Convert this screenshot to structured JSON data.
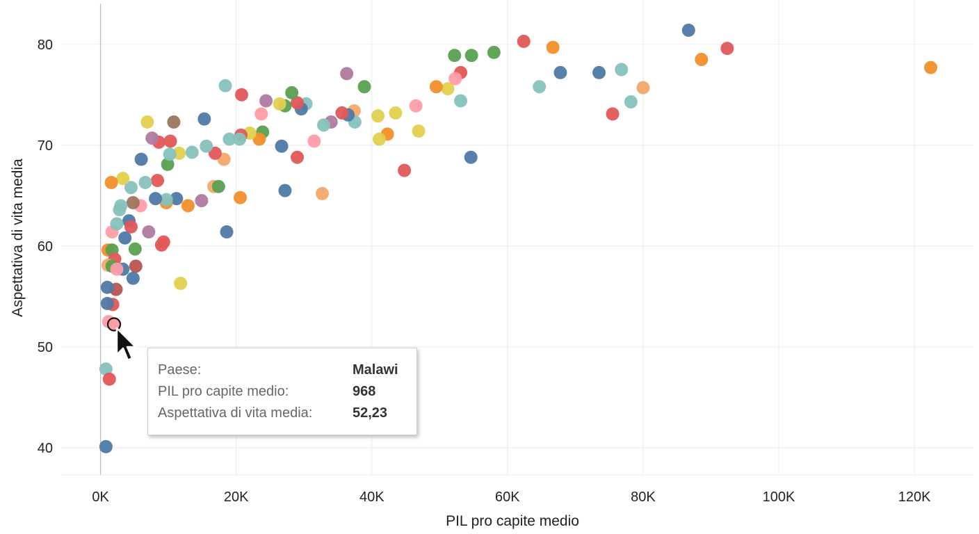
{
  "chart_data": {
    "type": "scatter",
    "title": "",
    "xlabel": "PIL pro capite medio",
    "ylabel": "Aspettativa di vita media",
    "xlim": [
      -5800,
      128700
    ],
    "ylim": [
      37.3,
      84.4
    ],
    "xticks": [
      0,
      20000,
      40000,
      60000,
      80000,
      100000,
      120000
    ],
    "xtick_labels": [
      "0K",
      "20K",
      "40K",
      "60K",
      "80K",
      "100K",
      "120K"
    ],
    "yticks": [
      40,
      50,
      60,
      70,
      80
    ],
    "ytick_labels": [
      "40",
      "50",
      "60",
      "70",
      "80"
    ],
    "grid": true,
    "colors": {
      "blue": "#4e79a7",
      "orange": "#f28e2b",
      "red": "#e15759",
      "teal": "#86c2bd",
      "green": "#59a14f",
      "yellow": "#e2cf4f",
      "purple": "#b07aa1",
      "pink": "#ff9da7",
      "brown": "#9c755f",
      "peach": "#f4a86a",
      "darkred": "#b85450"
    },
    "points": [
      [
        122400,
        77.7,
        "orange"
      ],
      [
        92400,
        79.6,
        "red"
      ],
      [
        88600,
        78.5,
        "orange"
      ],
      [
        86700,
        81.4,
        "blue"
      ],
      [
        80000,
        75.7,
        "peach"
      ],
      [
        78200,
        74.3,
        "teal"
      ],
      [
        76800,
        77.5,
        "teal"
      ],
      [
        75500,
        73.1,
        "red"
      ],
      [
        73500,
        77.2,
        "blue"
      ],
      [
        67800,
        77.2,
        "blue"
      ],
      [
        66700,
        79.7,
        "orange"
      ],
      [
        64700,
        75.8,
        "teal"
      ],
      [
        62400,
        80.3,
        "red"
      ],
      [
        58000,
        79.2,
        "green"
      ],
      [
        54700,
        78.9,
        "green"
      ],
      [
        52200,
        78.9,
        "green"
      ],
      [
        53100,
        77.2,
        "red"
      ],
      [
        52300,
        76.6,
        "pink"
      ],
      [
        51200,
        75.6,
        "yellow"
      ],
      [
        49500,
        75.8,
        "orange"
      ],
      [
        53100,
        74.4,
        "teal"
      ],
      [
        54600,
        68.8,
        "blue"
      ],
      [
        46500,
        73.9,
        "pink"
      ],
      [
        46900,
        71.4,
        "yellow"
      ],
      [
        43500,
        73.2,
        "yellow"
      ],
      [
        42300,
        71.1,
        "orange"
      ],
      [
        41100,
        70.6,
        "yellow"
      ],
      [
        40900,
        72.9,
        "yellow"
      ],
      [
        44800,
        67.5,
        "red"
      ],
      [
        38900,
        75.8,
        "green"
      ],
      [
        36300,
        77.1,
        "purple"
      ],
      [
        37400,
        73.4,
        "peach"
      ],
      [
        37500,
        72.3,
        "teal"
      ],
      [
        36500,
        73.0,
        "blue"
      ],
      [
        35600,
        73.2,
        "red"
      ],
      [
        34000,
        72.3,
        "purple"
      ],
      [
        32900,
        72.0,
        "teal"
      ],
      [
        32700,
        65.2,
        "peach"
      ],
      [
        31500,
        70.4,
        "pink"
      ],
      [
        30300,
        74.1,
        "teal"
      ],
      [
        29600,
        73.6,
        "blue"
      ],
      [
        29000,
        74.2,
        "red"
      ],
      [
        28200,
        75.2,
        "green"
      ],
      [
        27200,
        73.9,
        "green"
      ],
      [
        26400,
        74.1,
        "yellow"
      ],
      [
        29000,
        68.8,
        "red"
      ],
      [
        26700,
        69.9,
        "blue"
      ],
      [
        27200,
        65.5,
        "blue"
      ],
      [
        24400,
        74.4,
        "purple"
      ],
      [
        23700,
        73.1,
        "pink"
      ],
      [
        23900,
        71.3,
        "green"
      ],
      [
        23400,
        70.6,
        "orange"
      ],
      [
        22000,
        71.2,
        "yellow"
      ],
      [
        20800,
        75.0,
        "red"
      ],
      [
        20700,
        71.0,
        "red"
      ],
      [
        20500,
        70.6,
        "teal"
      ],
      [
        20600,
        64.8,
        "orange"
      ],
      [
        18400,
        75.9,
        "teal"
      ],
      [
        19000,
        70.6,
        "teal"
      ],
      [
        18200,
        68.6,
        "peach"
      ],
      [
        18600,
        61.4,
        "blue"
      ],
      [
        16900,
        69.2,
        "red"
      ],
      [
        16700,
        65.9,
        "peach"
      ],
      [
        17400,
        65.9,
        "green"
      ],
      [
        15300,
        72.6,
        "blue"
      ],
      [
        15600,
        69.9,
        "teal"
      ],
      [
        14900,
        64.5,
        "purple"
      ],
      [
        13500,
        69.3,
        "teal"
      ],
      [
        12900,
        64.0,
        "orange"
      ],
      [
        11600,
        69.2,
        "yellow"
      ],
      [
        10800,
        72.3,
        "brown"
      ],
      [
        10300,
        70.4,
        "red"
      ],
      [
        9900,
        68.1,
        "green"
      ],
      [
        10200,
        69.1,
        "teal"
      ],
      [
        11200,
        64.7,
        "blue"
      ],
      [
        9700,
        64.3,
        "orange"
      ],
      [
        9700,
        64.6,
        "teal"
      ],
      [
        8600,
        70.3,
        "red"
      ],
      [
        7600,
        70.7,
        "purple"
      ],
      [
        6900,
        72.3,
        "yellow"
      ],
      [
        6000,
        68.6,
        "blue"
      ],
      [
        8400,
        66.5,
        "red"
      ],
      [
        8100,
        64.7,
        "blue"
      ],
      [
        6600,
        66.3,
        "teal"
      ],
      [
        5900,
        64.0,
        "pink"
      ],
      [
        7100,
        61.4,
        "purple"
      ],
      [
        9300,
        60.4,
        "red"
      ],
      [
        9000,
        60.1,
        "red"
      ],
      [
        4500,
        65.8,
        "teal"
      ],
      [
        3300,
        66.7,
        "yellow"
      ],
      [
        1600,
        66.3,
        "orange"
      ],
      [
        4800,
        64.3,
        "brown"
      ],
      [
        4200,
        62.5,
        "blue"
      ],
      [
        4500,
        61.9,
        "red"
      ],
      [
        3000,
        64.0,
        "teal"
      ],
      [
        2800,
        63.6,
        "teal"
      ],
      [
        1700,
        61.4,
        "pink"
      ],
      [
        2400,
        62.2,
        "teal"
      ],
      [
        3600,
        60.8,
        "blue"
      ],
      [
        5100,
        59.7,
        "green"
      ],
      [
        5200,
        58.0,
        "darkred"
      ],
      [
        4800,
        56.8,
        "blue"
      ],
      [
        11800,
        56.3,
        "yellow"
      ],
      [
        1100,
        59.6,
        "orange"
      ],
      [
        1700,
        59.6,
        "green"
      ],
      [
        2100,
        58.7,
        "red"
      ],
      [
        1100,
        58.1,
        "peach"
      ],
      [
        1700,
        58.0,
        "green"
      ],
      [
        3300,
        57.7,
        "blue"
      ],
      [
        2400,
        57.7,
        "pink"
      ],
      [
        2300,
        55.7,
        "darkred"
      ],
      [
        1000,
        55.9,
        "blue"
      ],
      [
        1800,
        54.2,
        "red"
      ],
      [
        1000,
        54.3,
        "blue"
      ],
      [
        1200,
        52.5,
        "pink"
      ],
      [
        800,
        47.8,
        "teal"
      ],
      [
        1300,
        46.8,
        "red"
      ],
      [
        800,
        40.1,
        "blue"
      ]
    ],
    "highlighted": {
      "x": 968,
      "y": 52.23,
      "color": "pink"
    }
  },
  "tooltip": {
    "rows": [
      {
        "label": "Paese:",
        "value": "Malawi"
      },
      {
        "label": "PIL pro capite medio:",
        "value": "968"
      },
      {
        "label": "Aspettativa di vita media:",
        "value": "52,23"
      }
    ]
  }
}
